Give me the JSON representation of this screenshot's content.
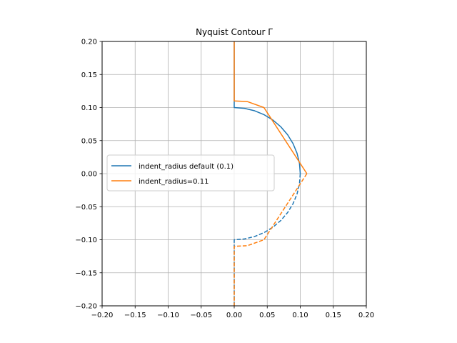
{
  "chart_data": {
    "type": "line",
    "title": "Nyquist Contour Γ",
    "xlabel": "",
    "ylabel": "",
    "xlim": [
      -0.2,
      0.2
    ],
    "ylim": [
      -0.2,
      0.2
    ],
    "xticks": [
      -0.2,
      -0.15,
      -0.1,
      -0.05,
      0.0,
      0.05,
      0.1,
      0.15,
      0.2
    ],
    "xtick_labels": [
      "−0.20",
      "−0.15",
      "−0.10",
      "−0.05",
      "0.00",
      "0.05",
      "0.10",
      "0.15",
      "0.20"
    ],
    "yticks": [
      -0.2,
      -0.15,
      -0.1,
      -0.05,
      0.0,
      0.05,
      0.1,
      0.15,
      0.2
    ],
    "ytick_labels": [
      "−0.20",
      "−0.15",
      "−0.10",
      "−0.05",
      "0.00",
      "0.05",
      "0.10",
      "0.15",
      "0.20"
    ],
    "grid": true,
    "legend_position": "center-left",
    "series": [
      {
        "name": "indent_radius default (0.1)",
        "color": "#1f77b4",
        "segments": [
          {
            "style": "solid",
            "points": [
              [
                0,
                0.2
              ],
              [
                0,
                0.1
              ],
              [
                0.0156,
                0.0988
              ],
              [
                0.0309,
                0.0951
              ],
              [
                0.0454,
                0.0891
              ],
              [
                0.0588,
                0.0809
              ],
              [
                0.0707,
                0.0707
              ],
              [
                0.0809,
                0.0588
              ],
              [
                0.0891,
                0.0454
              ],
              [
                0.0951,
                0.0309
              ],
              [
                0.0988,
                0.0156
              ],
              [
                0.1,
                0
              ]
            ]
          },
          {
            "style": "dashed",
            "points": [
              [
                0.1,
                0
              ],
              [
                0.0988,
                -0.0156
              ],
              [
                0.0951,
                -0.0309
              ],
              [
                0.0891,
                -0.0454
              ],
              [
                0.0809,
                -0.0588
              ],
              [
                0.0707,
                -0.0707
              ],
              [
                0.0588,
                -0.0809
              ],
              [
                0.0454,
                -0.0891
              ],
              [
                0.0309,
                -0.0951
              ],
              [
                0.0156,
                -0.0988
              ],
              [
                0,
                -0.1
              ],
              [
                0,
                -0.2
              ]
            ]
          }
        ]
      },
      {
        "name": "indent_radius=0.11",
        "color": "#ff7f0e",
        "segments": [
          {
            "style": "solid",
            "points": [
              [
                0,
                0.2
              ],
              [
                0,
                0.11
              ],
              [
                0.02,
                0.109
              ],
              [
                0.045,
                0.1
              ],
              [
                0.11,
                0
              ]
            ]
          },
          {
            "style": "dashed",
            "points": [
              [
                0.11,
                0
              ],
              [
                0.045,
                -0.1
              ],
              [
                0.02,
                -0.109
              ],
              [
                0,
                -0.11
              ],
              [
                0,
                -0.2
              ]
            ]
          }
        ]
      }
    ]
  }
}
